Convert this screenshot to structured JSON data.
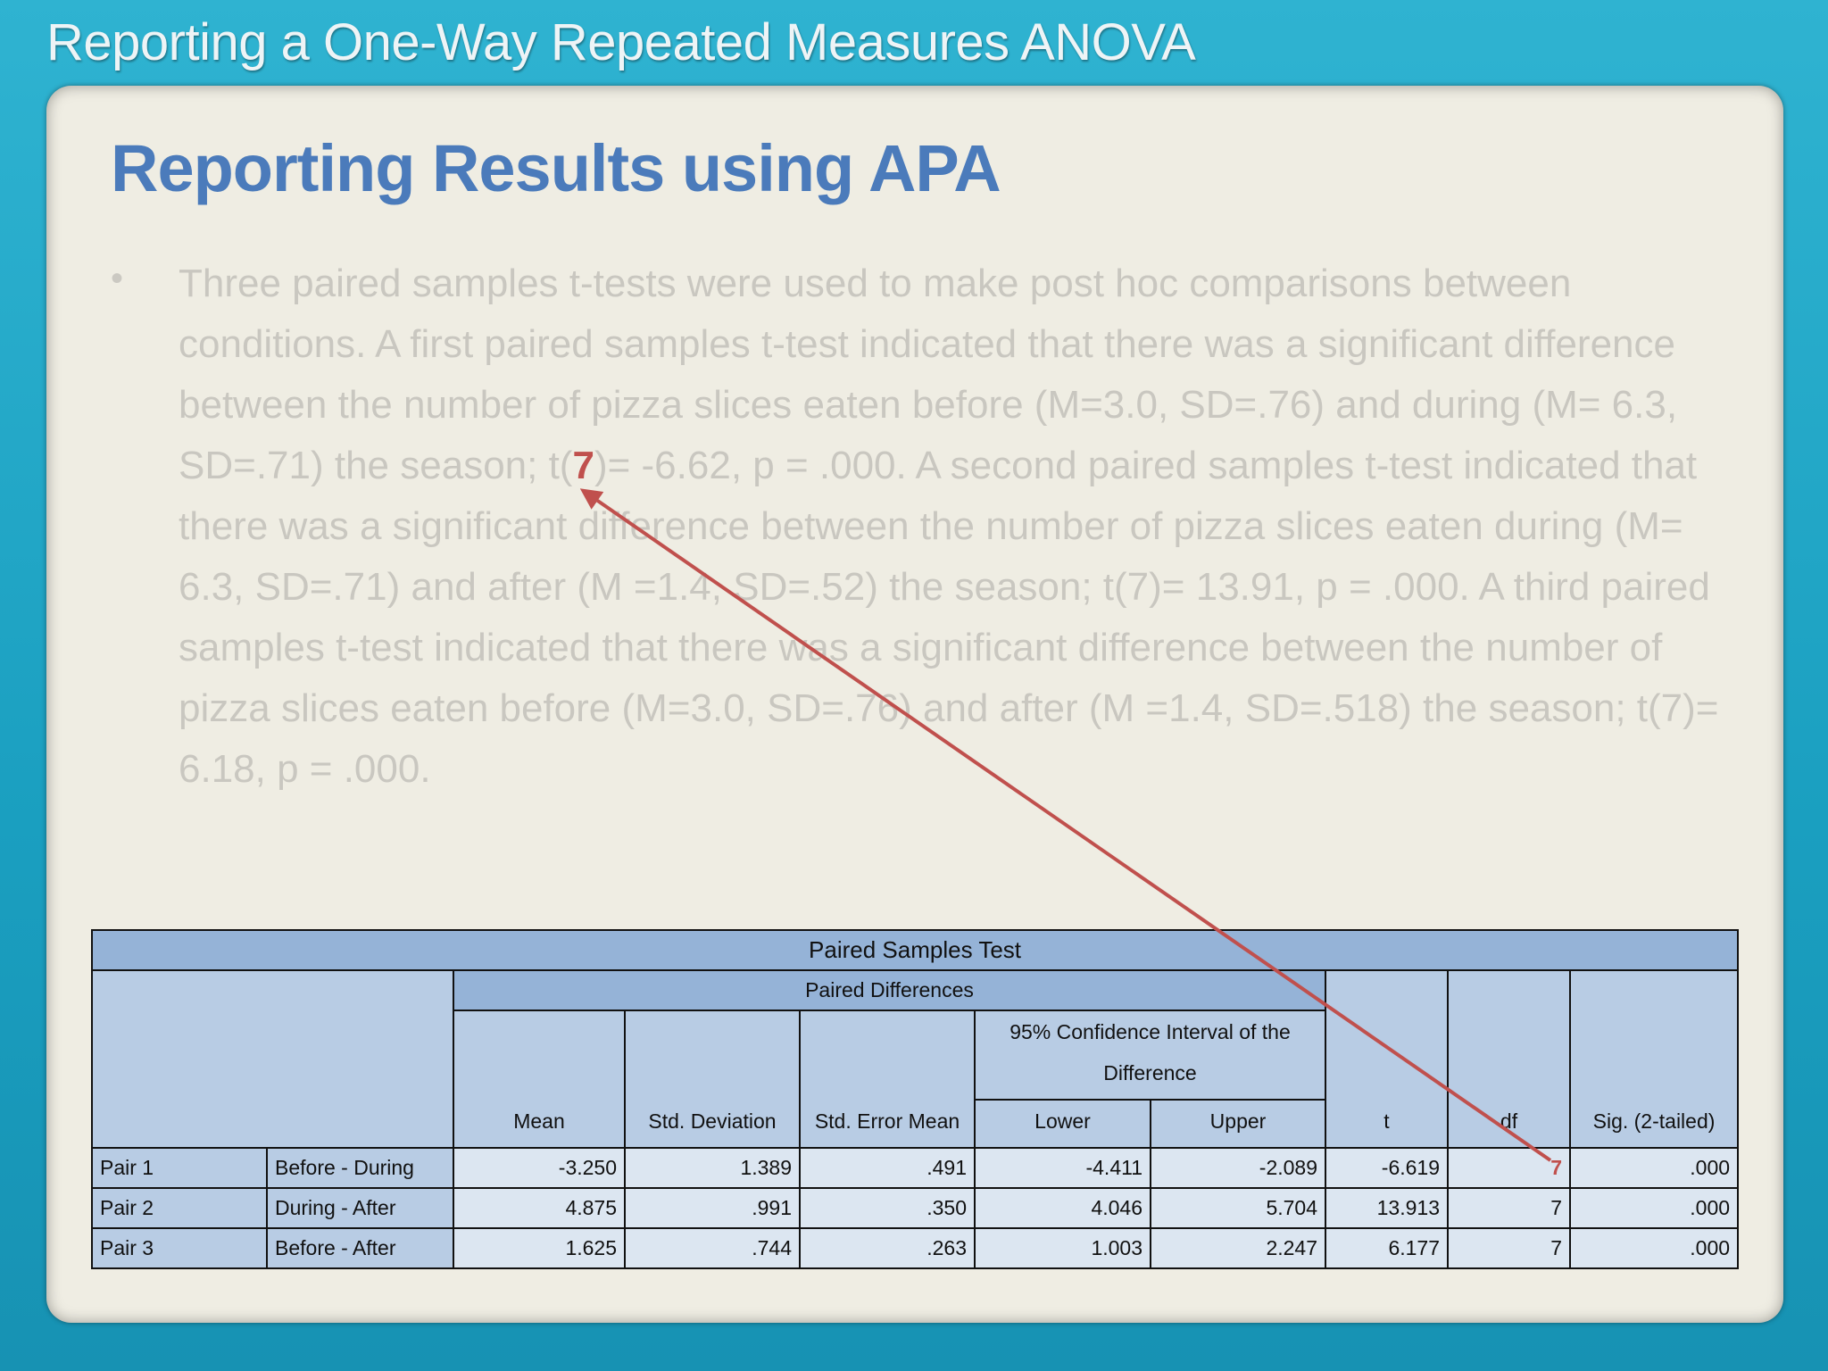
{
  "header": {
    "title": "Reporting a One-Way Repeated Measures ANOVA"
  },
  "slide": {
    "title": "Reporting Results using APA",
    "body": [
      "Three paired samples t-tests were used to make post hoc comparisons between conditions. A first paired samples t-test indicated that there was a significant difference between the number of pizza slices eaten before (M=3.0, SD=.76) and during (M= 6.3, SD=.71)  the season; t(",
      "7",
      ")= -6.62, p = .000. A second paired samples t-test indicated that there was a significant difference between the number of pizza slices eaten during (M= 6.3, SD=.71) and after (M =1.4, SD=.52) the season; t(7)= 13.91, p = .000. A third paired samples t-test indicated that there was a significant difference between the number of pizza slices eaten before (M=3.0, SD=.76) and after (M =1.4, SD=.518) the season; t(7)= 6.18, p = .000."
    ]
  },
  "table": {
    "title": "Paired Samples Test",
    "group": "Paired Differences",
    "columns": [
      "Mean",
      "Std. Deviation",
      "Std. Error Mean",
      "t",
      "df",
      "Sig. (2-tailed)"
    ],
    "ci": {
      "title": "95% Confidence Interval of the Difference",
      "lower": "Lower",
      "upper": "Upper"
    },
    "rows": [
      [
        "Pair 1",
        "Before - During",
        "-3.250",
        "1.389",
        ".491",
        "-4.411",
        "-2.089",
        "-6.619",
        "7",
        ".000"
      ],
      [
        "Pair 2",
        "During - After",
        "4.875",
        ".991",
        ".350",
        "4.046",
        "5.704",
        "13.913",
        "7",
        ".000"
      ],
      [
        "Pair 3",
        "Before - After",
        "1.625",
        ".744",
        ".263",
        "1.003",
        "2.247",
        "6.177",
        "7",
        ".000"
      ]
    ]
  }
}
